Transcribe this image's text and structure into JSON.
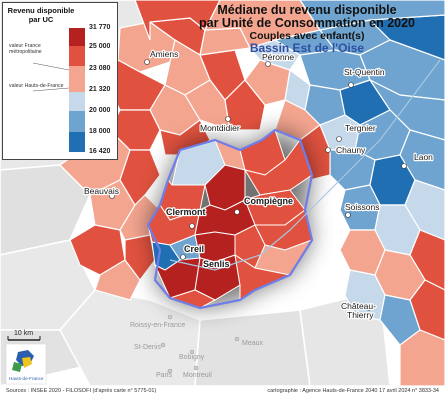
{
  "title": {
    "line1": "Médiane du revenu disponible",
    "line2": "par Unité de Consommation en 2020",
    "line3": "Couples avec enfant(s)",
    "line4": "Bassin Est de l'Oise"
  },
  "legend": {
    "title": "Revenu disponible par UC",
    "breaks": [
      "31 770",
      "25 000",
      "23 080",
      "21 320",
      "20 000",
      "18 000",
      "16 420"
    ],
    "class_colors": [
      "#b5211f",
      "#e0523f",
      "#f3a58f",
      "#c6d9ea",
      "#6ea4cf",
      "#1f6fb2"
    ],
    "ref_france": "valeur France métropolitaine",
    "ref_hdf": "valeur Hauts-de-France"
  },
  "map": {
    "cities_focus": [
      "Clermont",
      "Compiègne",
      "Creil",
      "Senlis"
    ],
    "cities": [
      "Amiens",
      "Péronne",
      "St-Quentin",
      "Tergnier",
      "Chauny",
      "Laon",
      "Montdidier",
      "Beauvais",
      "Soissons",
      "Château-Thierry"
    ],
    "cities_grey": [
      "Roissy-en-France",
      "Meaux",
      "St-Denis",
      "Bobigny",
      "Paris",
      "Montreuil"
    ],
    "scale_label": "10 km",
    "logo_text": "Hauts-de-France"
  },
  "footer": {
    "sources": "Sources : INSEE 2020 - FILOSOFI (d'après carte n° 5775-01)",
    "credits": "cartographie : Agence Hauts-de-France 2040    17 avril 2024 n° 3833-34"
  }
}
